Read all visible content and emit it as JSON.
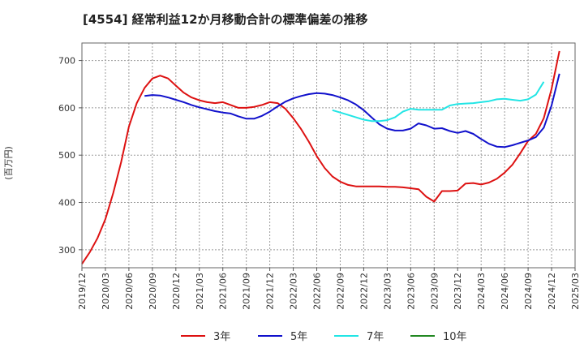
{
  "chart_data": {
    "type": "line",
    "title": "[4554]  経常利益12か月移動合計の標準偏差の推移",
    "ylabel": "(百万円)",
    "xlabel": "",
    "ylim": [
      262,
      737
    ],
    "yticks": [
      300,
      400,
      500,
      600,
      700
    ],
    "xticks": [
      "2019/12",
      "2020/03",
      "2020/06",
      "2020/09",
      "2020/12",
      "2021/03",
      "2021/06",
      "2021/09",
      "2021/12",
      "2022/03",
      "2022/06",
      "2022/09",
      "2022/12",
      "2023/03",
      "2023/06",
      "2023/09",
      "2023/12",
      "2024/03",
      "2024/06",
      "2024/09",
      "2024/12",
      "2025/03"
    ],
    "grid": true,
    "legend_position": "bottom",
    "colors": {
      "3年": "#dd1111",
      "5年": "#1111cc",
      "7年": "#22e5e5",
      "10年": "#228822"
    },
    "series": [
      {
        "name": "3年",
        "color": "#dd1111",
        "start": "2019/12",
        "values": [
          270,
          295,
          325,
          365,
          420,
          485,
          560,
          610,
          642,
          662,
          668,
          662,
          647,
          632,
          622,
          616,
          612,
          610,
          612,
          606,
          600,
          600,
          602,
          606,
          612,
          610,
          598,
          578,
          555,
          528,
          498,
          473,
          455,
          444,
          437,
          434,
          434,
          434,
          434,
          433,
          433,
          432,
          430,
          428,
          412,
          402,
          424,
          424,
          425,
          440,
          441,
          438,
          442,
          450,
          463,
          480,
          504,
          530,
          545,
          578,
          640,
          720
        ]
      },
      {
        "name": "5年",
        "color": "#1111cc",
        "start": "2020/08",
        "values": [
          625,
          627,
          626,
          622,
          617,
          612,
          606,
          601,
          597,
          593,
          590,
          588,
          582,
          577,
          577,
          583,
          592,
          603,
          613,
          620,
          625,
          629,
          631,
          630,
          627,
          622,
          616,
          607,
          595,
          580,
          565,
          556,
          552,
          552,
          556,
          567,
          563,
          556,
          557,
          551,
          547,
          551,
          545,
          534,
          524,
          518,
          517,
          521,
          526,
          531,
          538,
          558,
          605,
          672
        ]
      },
      {
        "name": "7年",
        "color": "#22e5e5",
        "start": "2022/08",
        "values": [
          595,
          590,
          585,
          580,
          575,
          572,
          572,
          574,
          580,
          592,
          598,
          596,
          596,
          596,
          596,
          605,
          608,
          609,
          610,
          612,
          614,
          618,
          619,
          617,
          615,
          618,
          628,
          655
        ]
      },
      {
        "name": "10年",
        "color": "#228822",
        "start": "",
        "values": []
      }
    ]
  }
}
